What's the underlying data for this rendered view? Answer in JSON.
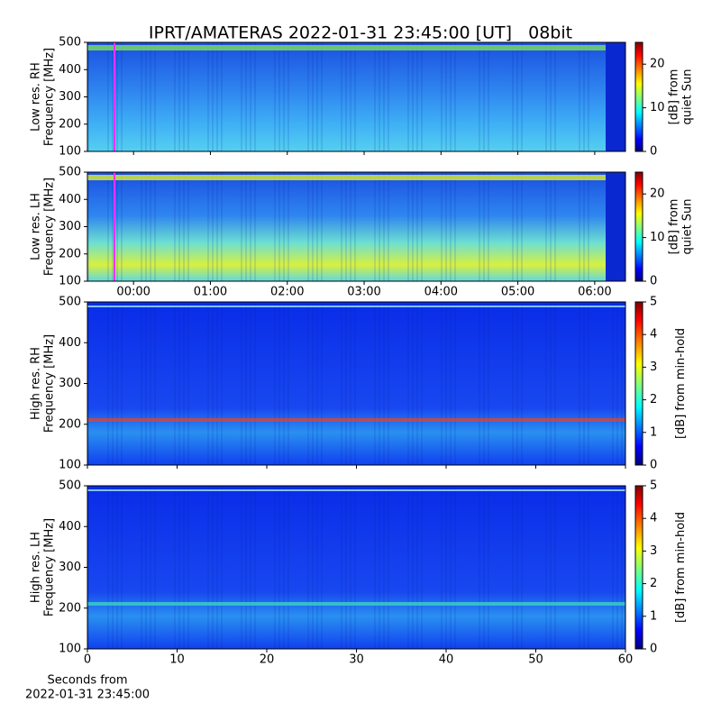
{
  "chart_data": [
    {
      "type": "heatmap",
      "title": "IPRT/AMATERAS 2022-01-31 23:45:00 [UT]   08bit",
      "ylabel": [
        "Low res. RH",
        "Frequency [MHz]"
      ],
      "ylim": [
        100,
        500
      ],
      "yticks": [
        100,
        200,
        300,
        400,
        500
      ],
      "colorbar": {
        "label": [
          "[dB] from",
          "quiet Sun"
        ],
        "lim": [
          0,
          25
        ],
        "ticks": [
          0,
          10,
          20
        ]
      }
    },
    {
      "type": "heatmap",
      "ylabel": [
        "Low res. LH",
        "Frequency [MHz]"
      ],
      "ylim": [
        100,
        500
      ],
      "yticks": [
        100,
        200,
        300,
        400,
        500
      ],
      "xlim": [
        "23:24",
        "06:24"
      ],
      "xticks": [
        "00:00",
        "01:00",
        "02:00",
        "03:00",
        "04:00",
        "05:00",
        "06:00"
      ],
      "colorbar": {
        "label": [
          "[dB] from",
          "quiet Sun"
        ],
        "lim": [
          0,
          25
        ],
        "ticks": [
          0,
          10,
          20
        ]
      }
    },
    {
      "type": "heatmap",
      "ylabel": [
        "High res. RH",
        "Frequency [MHz]"
      ],
      "ylim": [
        100,
        500
      ],
      "yticks": [
        100,
        200,
        300,
        400,
        500
      ],
      "colorbar": {
        "label": [
          "[dB] from min-hold"
        ],
        "lim": [
          0,
          5
        ],
        "ticks": [
          0,
          1,
          2,
          3,
          4,
          5
        ]
      }
    },
    {
      "type": "heatmap",
      "ylabel": [
        "High res. LH",
        "Frequency [MHz]"
      ],
      "ylim": [
        100,
        500
      ],
      "yticks": [
        100,
        200,
        300,
        400,
        500
      ],
      "xlim": [
        0,
        60
      ],
      "xticks": [
        0,
        10,
        20,
        30,
        40,
        50,
        60
      ],
      "xlabel": [
        "Seconds from",
        "2022-01-31 23:45:00"
      ],
      "colorbar": {
        "label": [
          "[dB] from min-hold"
        ],
        "lim": [
          0,
          5
        ],
        "ticks": [
          0,
          1,
          2,
          3,
          4,
          5
        ]
      }
    }
  ]
}
